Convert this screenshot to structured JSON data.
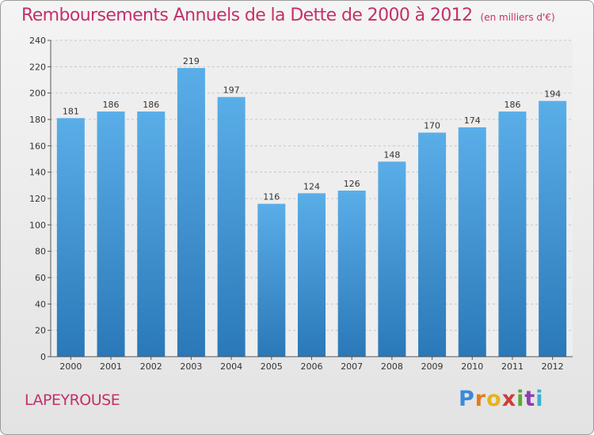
{
  "chart_data": {
    "type": "bar",
    "title": "Remboursements Annuels de la Dette de 2000 à 2012",
    "subtitle": "(en milliers d'€)",
    "categories": [
      "2000",
      "2001",
      "2002",
      "2003",
      "2004",
      "2005",
      "2006",
      "2007",
      "2008",
      "2009",
      "2010",
      "2011",
      "2012"
    ],
    "values": [
      181,
      186,
      186,
      219,
      197,
      116,
      124,
      126,
      148,
      170,
      174,
      186,
      194
    ],
    "ylim": [
      0,
      240
    ],
    "yticks": [
      0,
      20,
      40,
      60,
      80,
      100,
      120,
      140,
      160,
      180,
      200,
      220,
      240
    ],
    "grid": true,
    "legend": "none",
    "bar_color_top": "#5aaee8",
    "bar_color_bottom": "#2a78b8"
  },
  "footer": {
    "commune": "LAPEYROUSE",
    "logo": {
      "letters": [
        "P",
        "r",
        "o",
        "x",
        "i",
        "t",
        "i"
      ],
      "colors": [
        "#3a8ad8",
        "#e27b1f",
        "#e8b21a",
        "#d23a3a",
        "#5aa83a",
        "#8b3fb0",
        "#3ab0d0"
      ]
    }
  }
}
